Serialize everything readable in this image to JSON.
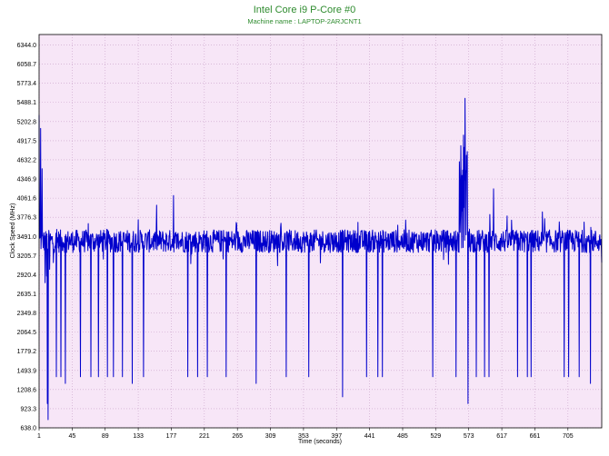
{
  "colors": {
    "plot_background": "#f7e6f7",
    "grid": "#c8a0c8",
    "series": "#0000cc",
    "title": "#2e8b2e"
  },
  "chart_data": {
    "type": "line",
    "title": "Intel Core i9 P-Core #0",
    "subtitle": "Machine name : LAPTOP-2ARJCNT1",
    "xlabel": "Time (seconds)",
    "ylabel": "Clock Speed (MHz)",
    "xlim": [
      1,
      750
    ],
    "ylim": [
      638.0,
      6500.0
    ],
    "grid": true,
    "x_ticks": [
      "1",
      "45",
      "89",
      "133",
      "177",
      "221",
      "265",
      "309",
      "353",
      "397",
      "441",
      "485",
      "529",
      "573",
      "617",
      "661",
      "705"
    ],
    "y_ticks": [
      "6344.0",
      "6058.7",
      "5773.4",
      "5488.1",
      "5202.8",
      "4917.5",
      "4632.2",
      "4346.9",
      "4061.6",
      "3776.3",
      "3491.0",
      "3205.7",
      "2920.4",
      "2635.1",
      "2349.8",
      "2064.5",
      "1779.2",
      "1493.9",
      "1208.6",
      "923.3",
      "638.0"
    ],
    "series": [
      {
        "baseline_mhz": 3420,
        "noise_mhz": 170,
        "key_points": [
          {
            "x": 1,
            "y": 5300
          },
          {
            "x": 3,
            "y": 5100
          },
          {
            "x": 5,
            "y": 4500
          },
          {
            "x": 7,
            "y": 3500
          },
          {
            "x": 9,
            "y": 2800
          },
          {
            "x": 11,
            "y": 2900
          },
          {
            "x": 12,
            "y": 1000
          },
          {
            "x": 13,
            "y": 760
          },
          {
            "x": 15,
            "y": 3000
          },
          {
            "x": 20,
            "y": 3100
          },
          {
            "x": 24,
            "y": 1400
          },
          {
            "x": 30,
            "y": 1400
          },
          {
            "x": 36,
            "y": 1300
          },
          {
            "x": 56,
            "y": 1400
          },
          {
            "x": 70,
            "y": 1400
          },
          {
            "x": 80,
            "y": 1400
          },
          {
            "x": 92,
            "y": 1400
          },
          {
            "x": 100,
            "y": 1400
          },
          {
            "x": 112,
            "y": 1400
          },
          {
            "x": 125,
            "y": 1300
          },
          {
            "x": 140,
            "y": 1400
          },
          {
            "x": 180,
            "y": 4100
          },
          {
            "x": 199,
            "y": 1400
          },
          {
            "x": 212,
            "y": 1400
          },
          {
            "x": 225,
            "y": 1400
          },
          {
            "x": 250,
            "y": 1400
          },
          {
            "x": 290,
            "y": 1300
          },
          {
            "x": 330,
            "y": 1400
          },
          {
            "x": 360,
            "y": 1400
          },
          {
            "x": 405,
            "y": 1100
          },
          {
            "x": 437,
            "y": 1400
          },
          {
            "x": 452,
            "y": 1400
          },
          {
            "x": 458,
            "y": 1400
          },
          {
            "x": 525,
            "y": 1400
          },
          {
            "x": 556,
            "y": 1400
          },
          {
            "x": 562,
            "y": 3800
          },
          {
            "x": 564,
            "y": 4400
          },
          {
            "x": 566,
            "y": 5000
          },
          {
            "x": 568,
            "y": 5550
          },
          {
            "x": 570,
            "y": 4700
          },
          {
            "x": 572,
            "y": 1000
          },
          {
            "x": 574,
            "y": 3600
          },
          {
            "x": 583,
            "y": 1400
          },
          {
            "x": 594,
            "y": 1400
          },
          {
            "x": 600,
            "y": 1400
          },
          {
            "x": 606,
            "y": 4200
          },
          {
            "x": 638,
            "y": 1400
          },
          {
            "x": 651,
            "y": 1400
          },
          {
            "x": 656,
            "y": 1400
          },
          {
            "x": 700,
            "y": 1400
          },
          {
            "x": 706,
            "y": 1400
          },
          {
            "x": 720,
            "y": 1400
          },
          {
            "x": 735,
            "y": 1300
          },
          {
            "x": 750,
            "y": 3100
          }
        ]
      }
    ]
  }
}
